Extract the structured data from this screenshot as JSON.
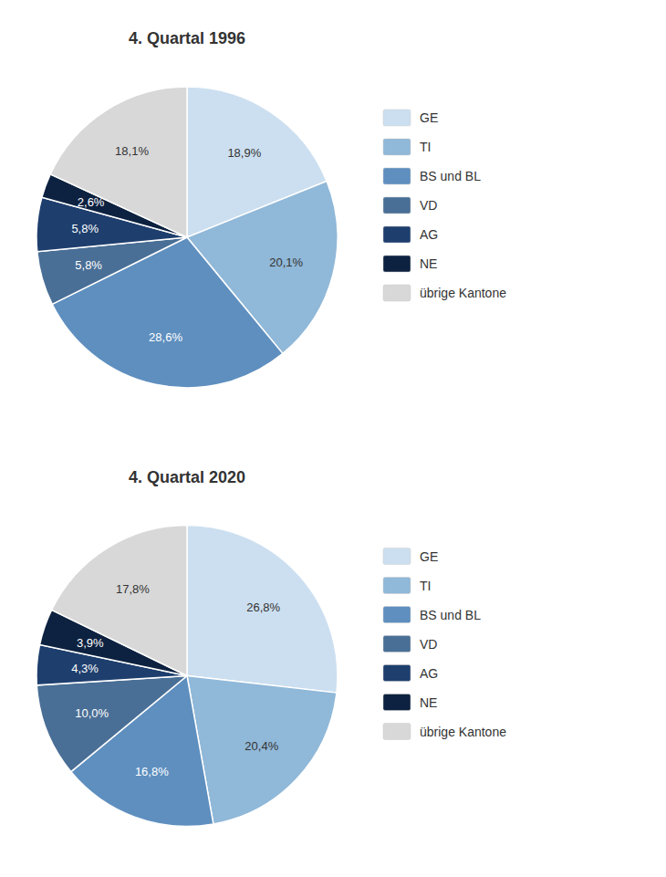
{
  "chart_data": [
    {
      "type": "pie",
      "title": "4. Quartal 1996",
      "categories": [
        "GE",
        "TI",
        "BS und BL",
        "VD",
        "AG",
        "NE",
        "übrige Kantone"
      ],
      "values": [
        18.9,
        20.1,
        28.6,
        5.8,
        5.8,
        2.6,
        18.1
      ],
      "value_labels": [
        "18,9%",
        "20,1%",
        "28,6%",
        "5,8%",
        "5,8%",
        "2,6%",
        "18,1%"
      ],
      "colors": [
        "#ccdff0",
        "#90b8d8",
        "#5e8fbf",
        "#4a6f96",
        "#1e3f6e",
        "#0d2240",
        "#d8d8d8"
      ],
      "data_labels": true,
      "legend": "right"
    },
    {
      "type": "pie",
      "title": "4. Quartal 2020",
      "categories": [
        "GE",
        "TI",
        "BS und BL",
        "VD",
        "AG",
        "NE",
        "übrige Kantone"
      ],
      "values": [
        26.8,
        20.4,
        16.8,
        10.0,
        4.3,
        3.9,
        17.8
      ],
      "value_labels": [
        "26,8%",
        "20,4%",
        "16,8%",
        "10,0%",
        "4,3%",
        "3,9%",
        "17,8%"
      ],
      "colors": [
        "#ccdff0",
        "#90b8d8",
        "#5e8fbf",
        "#4a6f96",
        "#1e3f6e",
        "#0d2240",
        "#d8d8d8"
      ],
      "data_labels": true,
      "legend": "right"
    }
  ]
}
